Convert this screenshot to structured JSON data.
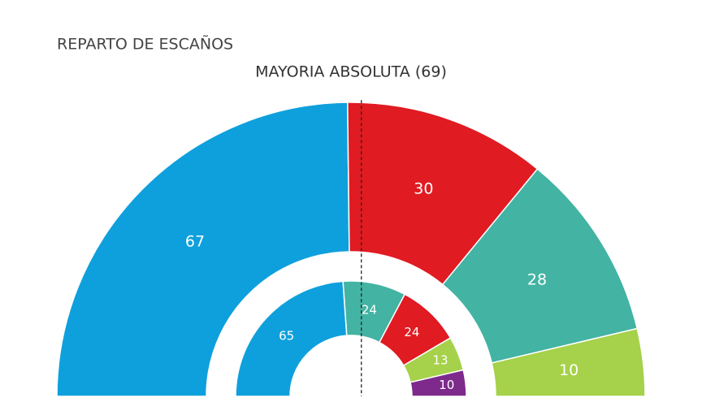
{
  "chart_data": {
    "type": "parliament",
    "title": "REPARTO DE ESCAÑOS",
    "annotation": "MAYORIA ABSOLUTA (69)",
    "majority": 69,
    "rings": [
      {
        "values": [
          67,
          30,
          28,
          10
        ],
        "colors": [
          "#0ea0dc",
          "#e01b22",
          "#43b3a3",
          "#a6d14a"
        ]
      },
      {
        "values": [
          65,
          24,
          24,
          13,
          10
        ],
        "colors": [
          "#0ea0dc",
          "#43b3a3",
          "#e01b22",
          "#a6d14a",
          "#7d2a8c"
        ]
      }
    ]
  }
}
